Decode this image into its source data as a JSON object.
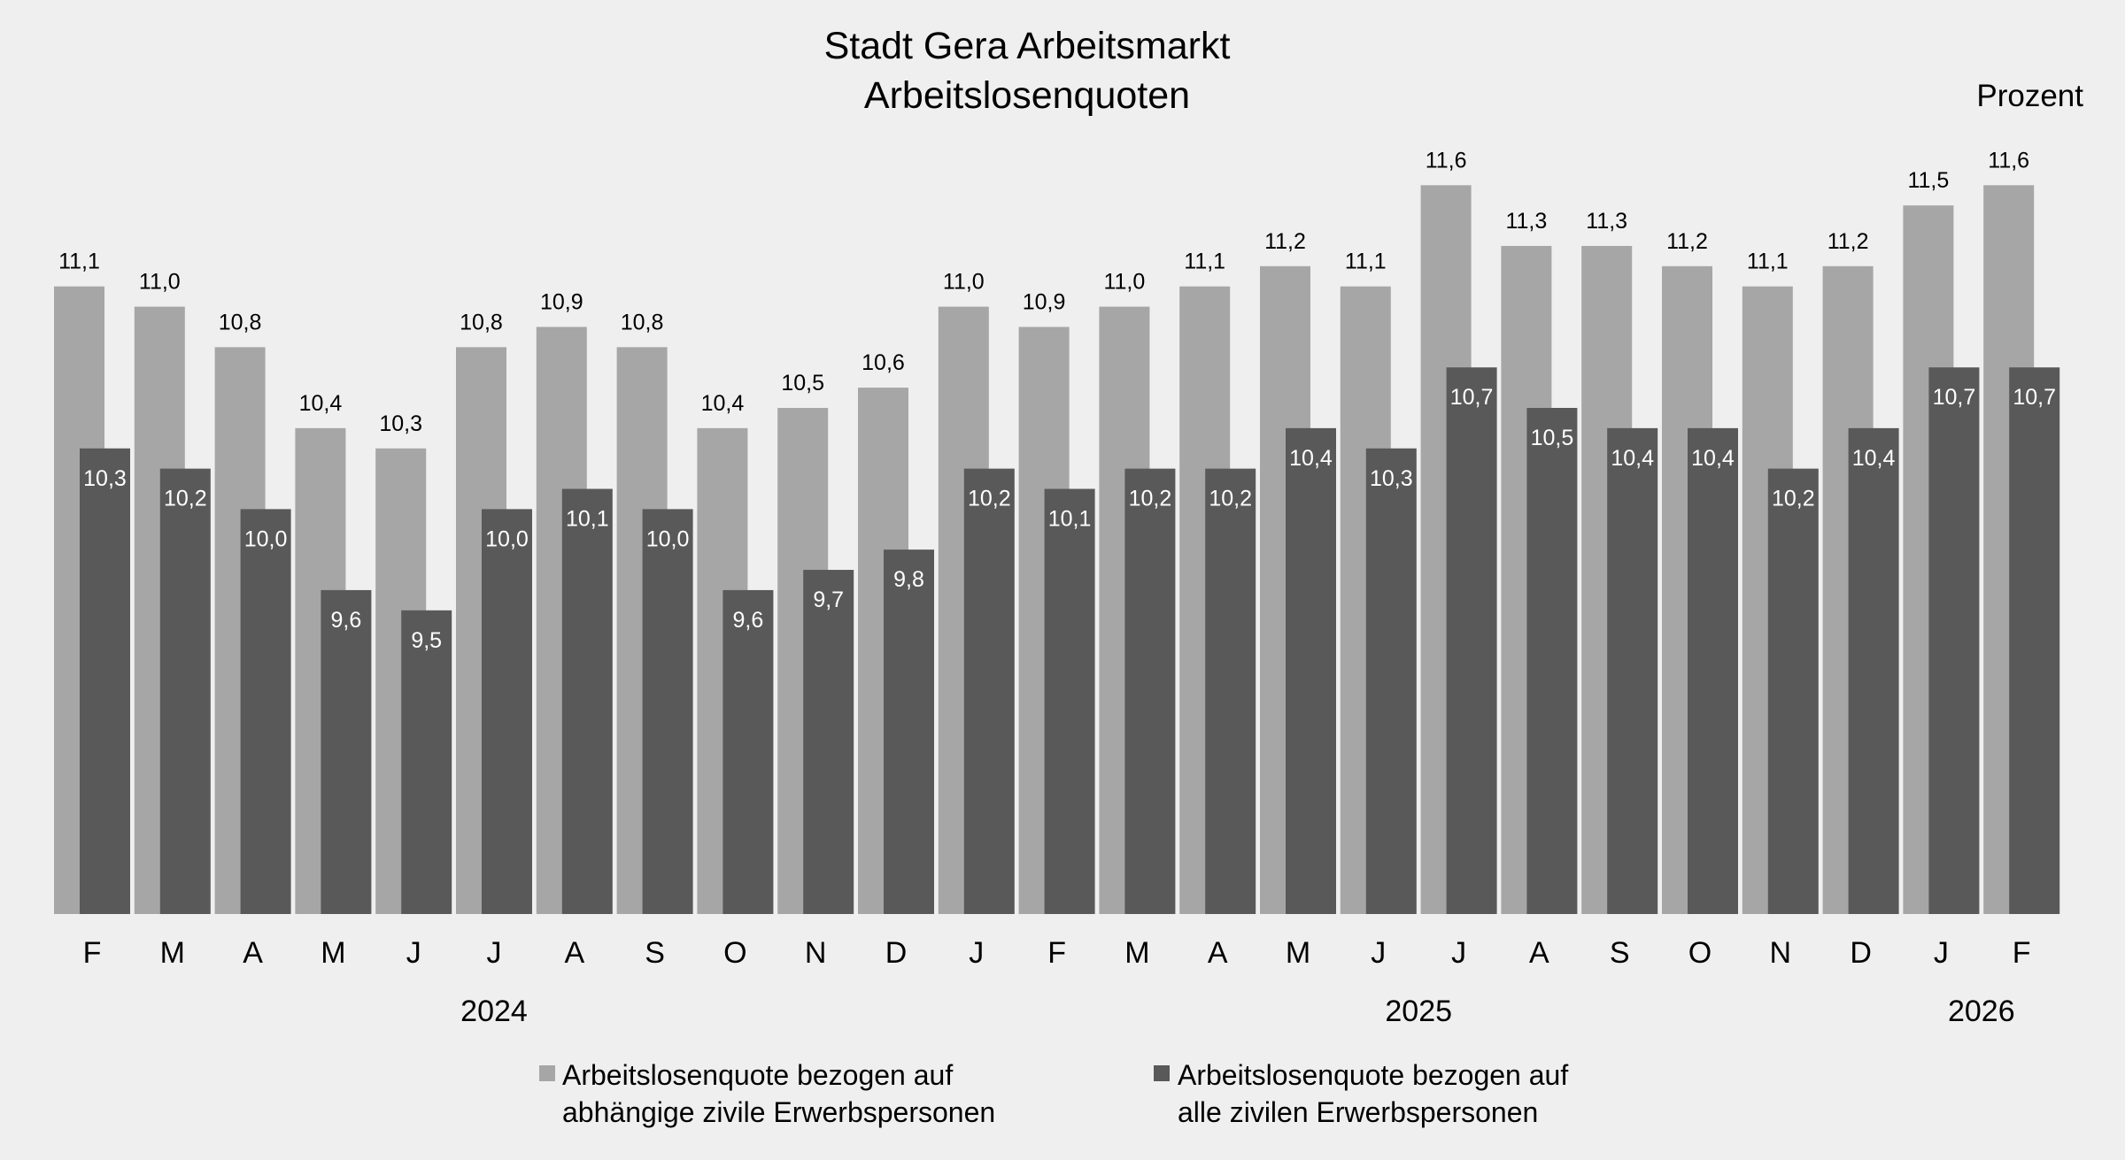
{
  "chart_data": {
    "type": "bar",
    "title": "Stadt Gera Arbeitsmarkt",
    "subtitle": "Arbeitslosenquoten",
    "unit_label": "Prozent",
    "categories": [
      "F",
      "M",
      "A",
      "M",
      "J",
      "J",
      "A",
      "S",
      "O",
      "N",
      "D",
      "J",
      "F",
      "M",
      "A",
      "M",
      "J",
      "J",
      "A",
      "S",
      "O",
      "N",
      "D",
      "J",
      "F"
    ],
    "years": [
      {
        "label": "2024",
        "center_category": 5
      },
      {
        "label": "2025",
        "center_category": 16.5
      },
      {
        "label": "2026",
        "center_category": 23.5
      }
    ],
    "series": [
      {
        "name": "Arbeitslosenquote bezogen auf abhängige zivile Erwerbspersonen",
        "legend_lines": [
          "Arbeitslosenquote bezogen auf",
          "abhängige zivile Erwerbspersonen"
        ],
        "color": "#a6a6a6",
        "values": [
          11.1,
          11.0,
          10.8,
          10.4,
          10.3,
          10.8,
          10.9,
          10.8,
          10.4,
          10.5,
          10.6,
          11.0,
          10.9,
          11.0,
          11.1,
          11.2,
          11.1,
          11.6,
          11.3,
          11.3,
          11.2,
          11.1,
          11.2,
          11.5,
          11.6
        ]
      },
      {
        "name": "Arbeitslosenquote bezogen auf alle zivilen Erwerbspersonen",
        "legend_lines": [
          "Arbeitslosenquote bezogen auf",
          "alle zivilen Erwerbspersonen"
        ],
        "color": "#595959",
        "values": [
          10.3,
          10.2,
          10.0,
          9.6,
          9.5,
          10.0,
          10.1,
          10.0,
          9.6,
          9.7,
          9.8,
          10.2,
          10.1,
          10.2,
          10.2,
          10.4,
          10.3,
          10.7,
          10.5,
          10.4,
          10.4,
          10.2,
          10.4,
          10.7,
          10.7
        ]
      }
    ],
    "ylim": [
      8,
      12
    ],
    "grid": false,
    "legend_position": "bottom",
    "decimal_separator": ","
  }
}
